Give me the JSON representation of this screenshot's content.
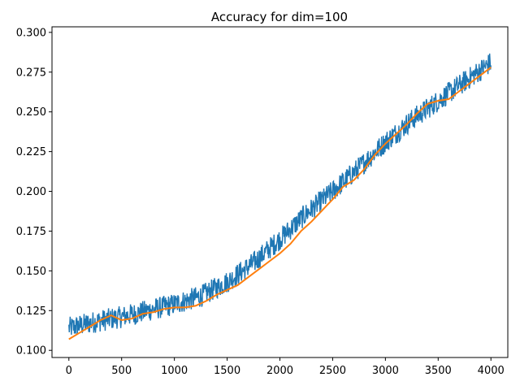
{
  "chart_data": {
    "type": "line",
    "title": "Accuracy for dim=100",
    "xlabel": "",
    "ylabel": "",
    "xlim": [
      -160,
      4160
    ],
    "ylim": [
      0.0955,
      0.3035
    ],
    "xticks": [
      0,
      500,
      1000,
      1500,
      2000,
      2500,
      3000,
      3500,
      4000
    ],
    "xtick_labels": [
      "0",
      "500",
      "1000",
      "1500",
      "2000",
      "2500",
      "3000",
      "3500",
      "4000"
    ],
    "yticks": [
      0.1,
      0.125,
      0.15,
      0.175,
      0.2,
      0.225,
      0.25,
      0.275,
      0.3
    ],
    "ytick_labels": [
      "0.100",
      "0.125",
      "0.150",
      "0.175",
      "0.200",
      "0.225",
      "0.250",
      "0.275",
      "0.300"
    ],
    "grid": false,
    "series": [
      {
        "role": "raw",
        "color": "#1f77b4",
        "x": [
          0,
          250,
          500,
          750,
          1000,
          1250,
          1500,
          1750,
          2000,
          2250,
          2500,
          2750,
          3000,
          3250,
          3500,
          3750,
          4000
        ],
        "trend": [
          0.114,
          0.118,
          0.121,
          0.125,
          0.129,
          0.134,
          0.143,
          0.155,
          0.17,
          0.186,
          0.2,
          0.215,
          0.231,
          0.245,
          0.257,
          0.269,
          0.281
        ],
        "noise_band": 0.007
      },
      {
        "role": "smoothed",
        "color": "#ff7f0e",
        "x": [
          0,
          100,
          200,
          300,
          400,
          500,
          600,
          700,
          800,
          900,
          1000,
          1100,
          1200,
          1300,
          1400,
          1500,
          1600,
          1700,
          1800,
          1900,
          2000,
          2100,
          2200,
          2300,
          2400,
          2500,
          2600,
          2700,
          2800,
          2900,
          3000,
          3100,
          3200,
          3300,
          3400,
          3500,
          3600,
          3700,
          3800,
          3900,
          4000
        ],
        "values": [
          0.107,
          0.111,
          0.115,
          0.119,
          0.122,
          0.119,
          0.12,
          0.123,
          0.124,
          0.126,
          0.127,
          0.127,
          0.128,
          0.131,
          0.135,
          0.138,
          0.141,
          0.146,
          0.151,
          0.156,
          0.161,
          0.167,
          0.175,
          0.181,
          0.188,
          0.195,
          0.203,
          0.207,
          0.214,
          0.223,
          0.23,
          0.236,
          0.242,
          0.249,
          0.255,
          0.257,
          0.258,
          0.263,
          0.268,
          0.273,
          0.278
        ]
      }
    ]
  }
}
